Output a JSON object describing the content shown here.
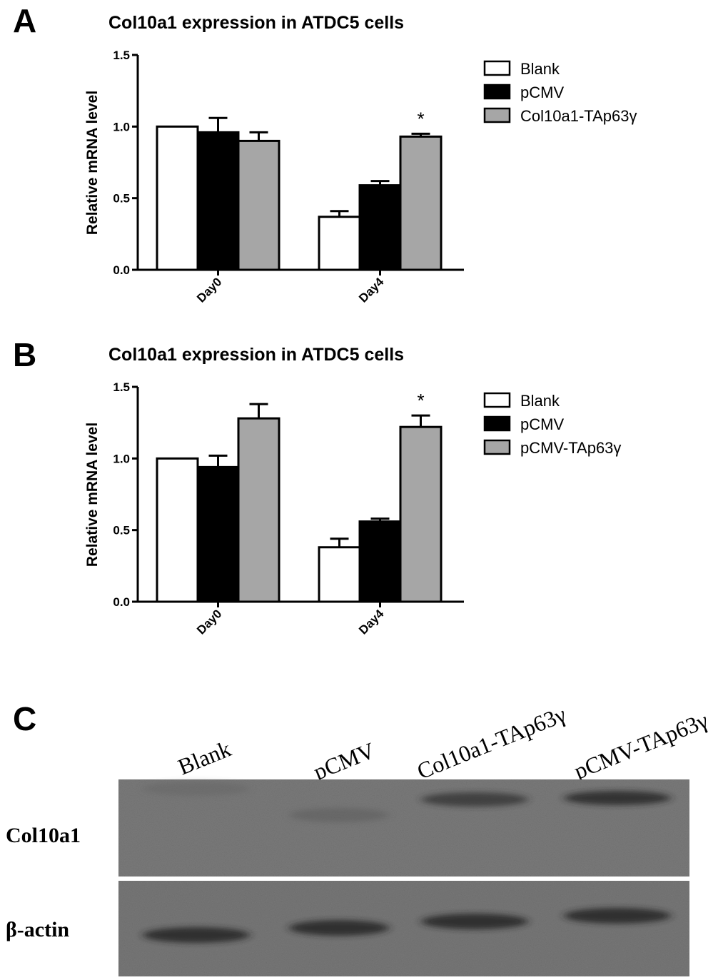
{
  "panels": {
    "a": "A",
    "b": "B",
    "c": "C"
  },
  "colors": {
    "blank": "#ffffff",
    "pcmv": "#000000",
    "treat": "#a6a6a6"
  },
  "chart_data": [
    {
      "type": "bar",
      "title": "Col10a1 expression in ATDC5 cells",
      "ylabel": "Relative mRNA level",
      "xlabel": "",
      "ylim": [
        0,
        1.5
      ],
      "yticks": [
        "0.0",
        "0.5",
        "1.0",
        "1.5"
      ],
      "ytick_values": [
        0,
        0.5,
        1.0,
        1.5
      ],
      "categories": [
        "Day0",
        "Day4"
      ],
      "series": [
        {
          "name": "Blank",
          "color": "#ffffff",
          "values": [
            1.0,
            0.37
          ],
          "errors": [
            0,
            0.04
          ]
        },
        {
          "name": "pCMV",
          "color": "#000000",
          "values": [
            0.96,
            0.59
          ],
          "errors": [
            0.1,
            0.03
          ]
        },
        {
          "name": "Col10a1-TAp63γ",
          "color": "#a6a6a6",
          "values": [
            0.9,
            0.93
          ],
          "errors": [
            0.06,
            0.02
          ]
        }
      ],
      "annotations": [
        {
          "text": "*",
          "category": "Day4",
          "series": 2
        }
      ]
    },
    {
      "type": "bar",
      "title": "Col10a1 expression in ATDC5 cells",
      "ylabel": "Relative mRNA level",
      "xlabel": "",
      "ylim": [
        0,
        1.5
      ],
      "yticks": [
        "0.0",
        "0.5",
        "1.0",
        "1.5"
      ],
      "ytick_values": [
        0,
        0.5,
        1.0,
        1.5
      ],
      "categories": [
        "Day0",
        "Day4"
      ],
      "series": [
        {
          "name": "Blank",
          "color": "#ffffff",
          "values": [
            1.0,
            0.38
          ],
          "errors": [
            0,
            0.06
          ]
        },
        {
          "name": "pCMV",
          "color": "#000000",
          "values": [
            0.94,
            0.56
          ],
          "errors": [
            0.08,
            0.02
          ]
        },
        {
          "name": "pCMV-TAp63γ",
          "color": "#a6a6a6",
          "values": [
            1.28,
            1.22
          ],
          "errors": [
            0.1,
            0.08
          ]
        }
      ],
      "annotations": [
        {
          "text": "*",
          "category": "Day4",
          "series": 2
        }
      ]
    }
  ],
  "blot": {
    "lanes": [
      "Blank",
      "pCMV",
      "Col10a1-TAp63γ",
      "pCMV-TAp63γ"
    ],
    "rows": [
      {
        "label": "Col10a1",
        "intensity": [
          0.2,
          0.3,
          0.7,
          0.8
        ]
      },
      {
        "label": "β-actin",
        "intensity": [
          0.85,
          0.85,
          0.85,
          0.85
        ]
      }
    ]
  }
}
